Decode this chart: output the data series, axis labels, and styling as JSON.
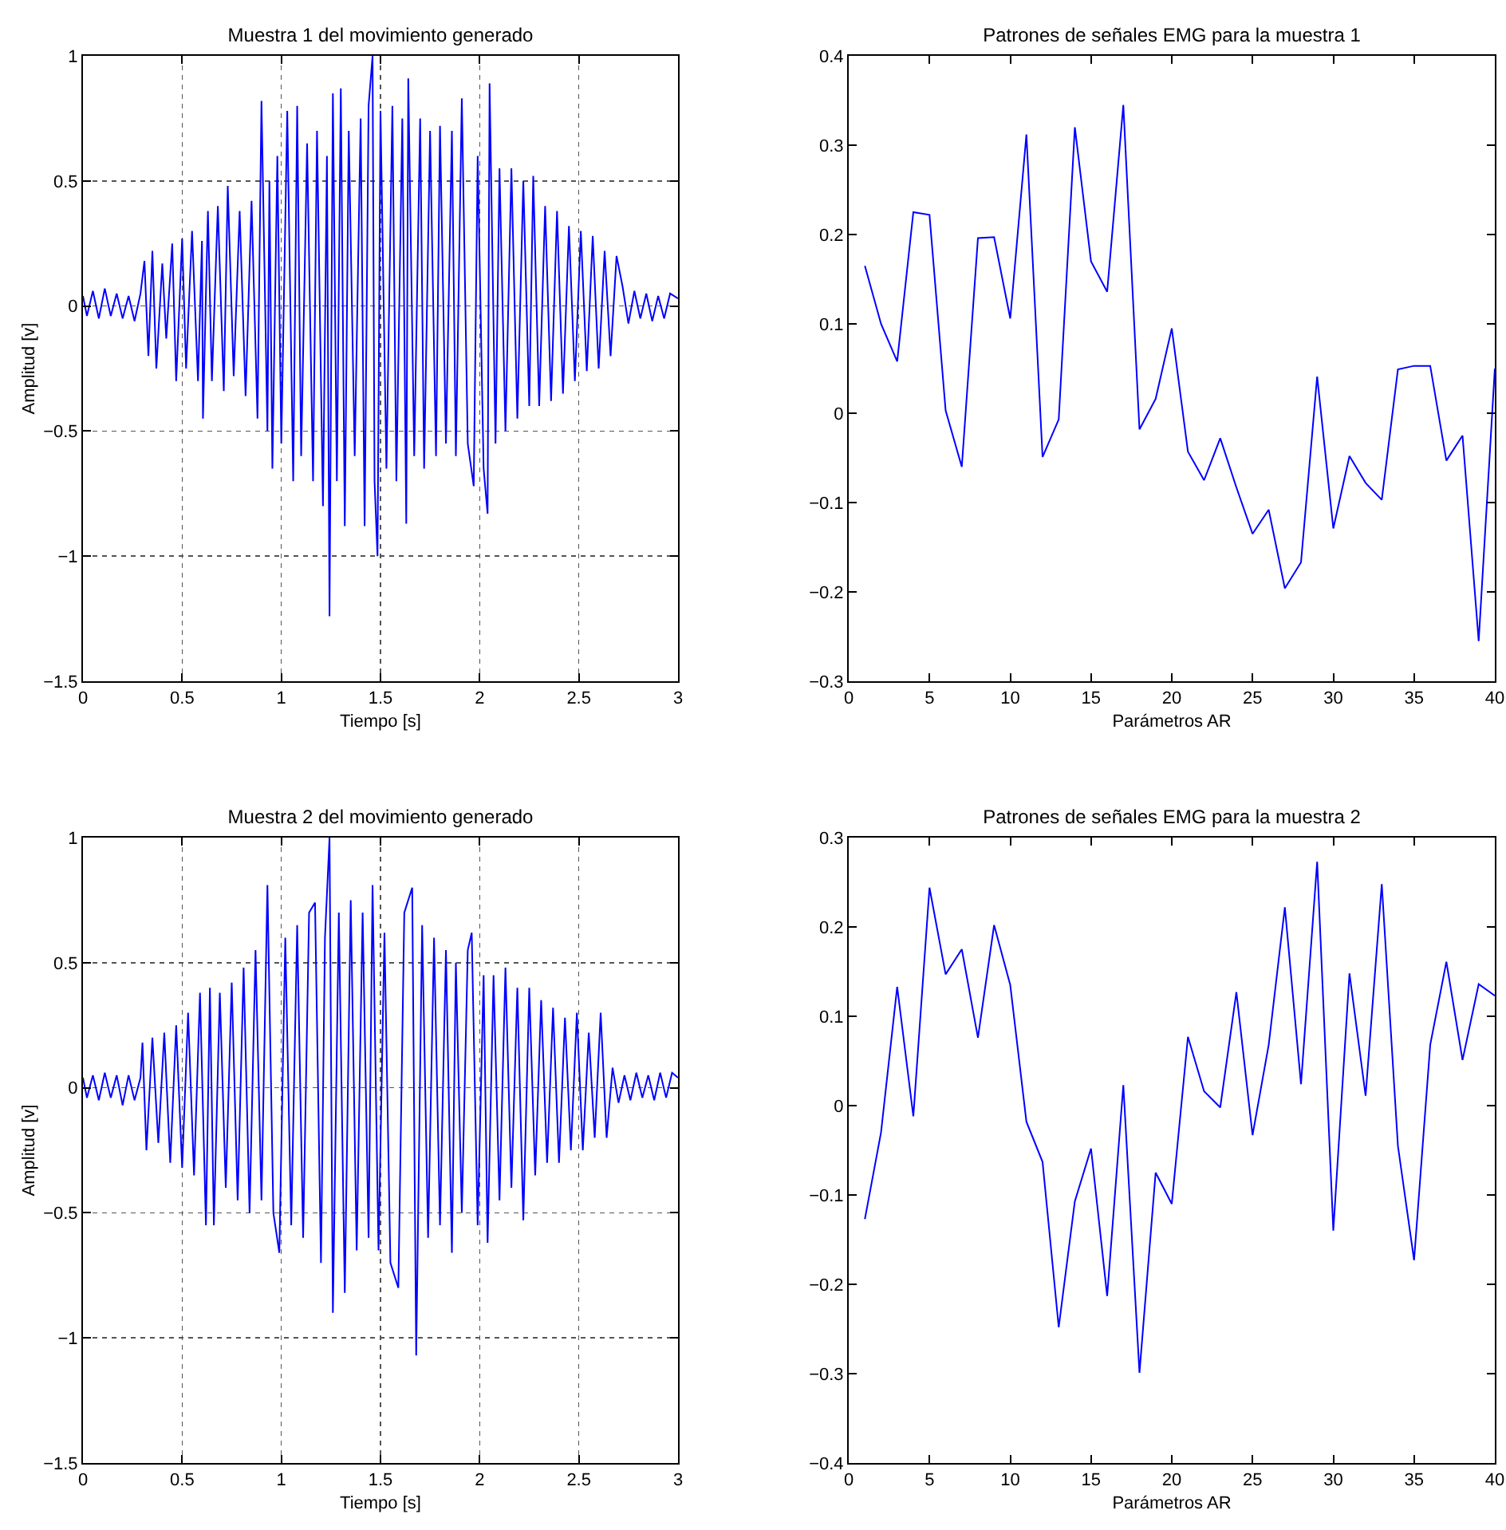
{
  "chart_data": [
    {
      "type": "line",
      "title": "Muestra 1 del movimiento generado",
      "xlabel": "Tiempo [s]",
      "ylabel": "Amplitud [v]",
      "xlim": [
        0,
        3
      ],
      "xticks": [
        0,
        0.5,
        1,
        1.5,
        2,
        2.5,
        3
      ],
      "ylim": [
        -1.5,
        1
      ],
      "yticks": [
        -1.5,
        -1,
        -0.5,
        0,
        0.5,
        1
      ],
      "grid": true,
      "series": [
        {
          "color": "#0000ff",
          "x": [
            0,
            0.02,
            0.05,
            0.08,
            0.11,
            0.14,
            0.17,
            0.2,
            0.23,
            0.26,
            0.29,
            0.31,
            0.33,
            0.35,
            0.37,
            0.4,
            0.42,
            0.45,
            0.47,
            0.5,
            0.52,
            0.55,
            0.58,
            0.6,
            0.605,
            0.63,
            0.65,
            0.68,
            0.71,
            0.73,
            0.76,
            0.79,
            0.82,
            0.85,
            0.88,
            0.9,
            0.93,
            0.94,
            0.955,
            0.98,
            1.0,
            1.03,
            1.06,
            1.08,
            1.1,
            1.13,
            1.16,
            1.18,
            1.21,
            1.23,
            1.243,
            1.26,
            1.28,
            1.3,
            1.32,
            1.34,
            1.37,
            1.4,
            1.42,
            1.44,
            1.46,
            1.47,
            1.485,
            1.5,
            1.53,
            1.56,
            1.58,
            1.61,
            1.63,
            1.64,
            1.67,
            1.7,
            1.72,
            1.75,
            1.78,
            1.8,
            1.83,
            1.86,
            1.88,
            1.91,
            1.94,
            1.97,
            1.99,
            2.02,
            2.04,
            2.05,
            2.08,
            2.1,
            2.13,
            2.16,
            2.19,
            2.22,
            2.25,
            2.27,
            2.3,
            2.33,
            2.36,
            2.39,
            2.42,
            2.45,
            2.48,
            2.51,
            2.54,
            2.57,
            2.6,
            2.63,
            2.66,
            2.69,
            2.72,
            2.75,
            2.78,
            2.81,
            2.84,
            2.87,
            2.9,
            2.93,
            2.96,
            3.0
          ],
          "values": [
            0.04,
            -0.04,
            0.06,
            -0.05,
            0.07,
            -0.04,
            0.05,
            -0.05,
            0.04,
            -0.06,
            0.05,
            0.18,
            -0.2,
            0.22,
            -0.25,
            0.17,
            -0.13,
            0.25,
            -0.3,
            0.27,
            -0.25,
            0.3,
            -0.3,
            0.26,
            -0.45,
            0.38,
            -0.3,
            0.4,
            -0.34,
            0.48,
            -0.28,
            0.38,
            -0.36,
            0.42,
            -0.45,
            0.82,
            -0.5,
            0.5,
            -0.65,
            0.6,
            -0.55,
            0.78,
            -0.7,
            0.8,
            -0.6,
            0.65,
            -0.7,
            0.7,
            -0.8,
            0.6,
            -1.24,
            0.85,
            -0.7,
            0.87,
            -0.88,
            0.7,
            -0.6,
            0.75,
            -0.88,
            0.8,
            1.0,
            -0.7,
            -1.0,
            0.78,
            -0.65,
            0.8,
            -0.7,
            0.75,
            -0.87,
            0.91,
            -0.6,
            0.75,
            -0.65,
            0.7,
            -0.6,
            0.72,
            -0.55,
            0.7,
            -0.6,
            0.83,
            -0.55,
            -0.72,
            0.6,
            -0.65,
            -0.83,
            0.89,
            -0.55,
            0.55,
            -0.5,
            0.55,
            -0.45,
            0.5,
            -0.4,
            0.52,
            -0.4,
            0.4,
            -0.38,
            0.38,
            -0.35,
            0.32,
            -0.3,
            0.3,
            -0.26,
            0.28,
            -0.25,
            0.22,
            -0.2,
            0.2,
            0.08,
            -0.07,
            0.06,
            -0.05,
            0.05,
            -0.06,
            0.04,
            -0.05,
            0.05,
            0.03
          ]
        }
      ]
    },
    {
      "type": "line",
      "title": "Patrones de señales EMG para la muestra 1",
      "xlabel": "Parámetros AR",
      "xlim": [
        0,
        40
      ],
      "xticks": [
        0,
        5,
        10,
        15,
        20,
        25,
        30,
        35,
        40
      ],
      "ylim": [
        -0.3,
        0.4
      ],
      "yticks": [
        -0.3,
        -0.2,
        -0.1,
        0,
        0.1,
        0.2,
        0.3,
        0.4
      ],
      "grid": false,
      "x": [
        1,
        2,
        3,
        4,
        5,
        6,
        7,
        8,
        9,
        10,
        11,
        12,
        13,
        14,
        15,
        16,
        17,
        18,
        19,
        20,
        21,
        22,
        23,
        24,
        25,
        26,
        27,
        28,
        29,
        30,
        31,
        32,
        33,
        34,
        35,
        36,
        37,
        38,
        39,
        40
      ],
      "series": [
        {
          "color": "#0000ff",
          "values": [
            0.165,
            0.1,
            0.058,
            0.225,
            0.222,
            0.003,
            -0.06,
            0.196,
            0.197,
            0.106,
            0.312,
            -0.049,
            -0.007,
            0.32,
            0.17,
            0.136,
            0.345,
            -0.018,
            0.016,
            0.095,
            -0.043,
            -0.075,
            -0.028,
            -0.083,
            -0.135,
            -0.108,
            -0.196,
            -0.167,
            0.041,
            -0.129,
            -0.048,
            -0.078,
            -0.097,
            0.049,
            0.053,
            0.053,
            -0.053,
            -0.025,
            -0.255,
            0.05
          ]
        }
      ]
    },
    {
      "type": "line",
      "title": "Muestra 2 del movimiento generado",
      "xlabel": "Tiempo [s]",
      "ylabel": "Amplitud [v]",
      "xlim": [
        0,
        3
      ],
      "xticks": [
        0,
        0.5,
        1,
        1.5,
        2,
        2.5,
        3
      ],
      "ylim": [
        -1.5,
        1
      ],
      "yticks": [
        -1.5,
        -1,
        -0.5,
        0,
        0.5,
        1
      ],
      "grid": true,
      "series": [
        {
          "color": "#0000ff",
          "x": [
            0,
            0.02,
            0.05,
            0.08,
            0.11,
            0.14,
            0.17,
            0.2,
            0.23,
            0.26,
            0.29,
            0.3,
            0.32,
            0.35,
            0.38,
            0.41,
            0.44,
            0.47,
            0.5,
            0.53,
            0.56,
            0.59,
            0.62,
            0.64,
            0.66,
            0.69,
            0.72,
            0.75,
            0.78,
            0.81,
            0.84,
            0.87,
            0.9,
            0.93,
            0.96,
            0.99,
            1.02,
            1.05,
            1.08,
            1.11,
            1.14,
            1.17,
            1.2,
            1.22,
            1.243,
            1.26,
            1.29,
            1.32,
            1.35,
            1.38,
            1.41,
            1.44,
            1.46,
            1.49,
            1.52,
            1.55,
            1.59,
            1.62,
            1.66,
            1.68,
            1.71,
            1.74,
            1.77,
            1.8,
            1.83,
            1.86,
            1.88,
            1.91,
            1.94,
            1.96,
            1.99,
            2.02,
            2.04,
            2.07,
            2.1,
            2.13,
            2.16,
            2.19,
            2.22,
            2.25,
            2.28,
            2.31,
            2.34,
            2.37,
            2.4,
            2.43,
            2.46,
            2.49,
            2.52,
            2.55,
            2.58,
            2.61,
            2.64,
            2.67,
            2.7,
            2.73,
            2.76,
            2.79,
            2.82,
            2.85,
            2.88,
            2.91,
            2.94,
            2.97,
            3.0
          ],
          "values": [
            0.04,
            -0.04,
            0.05,
            -0.05,
            0.06,
            -0.04,
            0.05,
            -0.07,
            0.05,
            -0.05,
            0.04,
            0.18,
            -0.25,
            0.2,
            -0.22,
            0.22,
            -0.3,
            0.25,
            -0.32,
            0.3,
            -0.35,
            0.38,
            -0.55,
            0.4,
            -0.55,
            0.38,
            -0.4,
            0.42,
            -0.45,
            0.48,
            -0.5,
            0.55,
            -0.45,
            0.81,
            -0.5,
            -0.66,
            0.6,
            -0.55,
            0.65,
            -0.6,
            0.7,
            0.74,
            -0.7,
            0.6,
            1.0,
            -0.9,
            0.7,
            -0.82,
            0.75,
            -0.65,
            0.7,
            -0.6,
            0.81,
            -0.65,
            0.62,
            -0.7,
            -0.8,
            0.7,
            0.8,
            -1.07,
            0.65,
            -0.6,
            0.6,
            -0.55,
            0.55,
            -0.66,
            0.5,
            -0.5,
            0.55,
            0.62,
            -0.55,
            0.45,
            -0.62,
            0.45,
            -0.45,
            0.48,
            -0.4,
            0.4,
            -0.53,
            0.4,
            -0.35,
            0.35,
            -0.3,
            0.32,
            -0.3,
            0.28,
            -0.25,
            0.3,
            -0.25,
            0.22,
            -0.2,
            0.3,
            -0.2,
            0.08,
            -0.06,
            0.05,
            -0.05,
            0.06,
            -0.04,
            0.05,
            -0.05,
            0.06,
            -0.04,
            0.06,
            0.04
          ]
        }
      ]
    },
    {
      "type": "line",
      "title": "Patrones de señales EMG para la muestra 2",
      "xlabel": "Parámetros AR",
      "xlim": [
        0,
        40
      ],
      "xticks": [
        0,
        5,
        10,
        15,
        20,
        25,
        30,
        35,
        40
      ],
      "ylim": [
        -0.4,
        0.3
      ],
      "yticks": [
        -0.4,
        -0.3,
        -0.2,
        -0.1,
        0,
        0.1,
        0.2,
        0.3
      ],
      "grid": false,
      "x": [
        1,
        2,
        3,
        4,
        5,
        6,
        7,
        8,
        9,
        10,
        11,
        12,
        13,
        14,
        15,
        16,
        17,
        18,
        19,
        20,
        21,
        22,
        23,
        24,
        25,
        26,
        27,
        28,
        29,
        30,
        31,
        32,
        33,
        34,
        35,
        36,
        37,
        38,
        39,
        40
      ],
      "series": [
        {
          "color": "#0000ff",
          "values": [
            -0.127,
            -0.03,
            0.133,
            -0.012,
            0.244,
            0.147,
            0.175,
            0.076,
            0.202,
            0.135,
            -0.018,
            -0.063,
            -0.248,
            -0.107,
            -0.048,
            -0.213,
            0.023,
            -0.299,
            -0.075,
            -0.11,
            0.077,
            0.016,
            -0.002,
            0.127,
            -0.033,
            0.068,
            0.222,
            0.024,
            0.273,
            -0.14,
            0.148,
            0.011,
            0.248,
            -0.045,
            -0.173,
            0.068,
            0.161,
            0.051,
            0.136,
            0.123
          ]
        }
      ]
    }
  ]
}
